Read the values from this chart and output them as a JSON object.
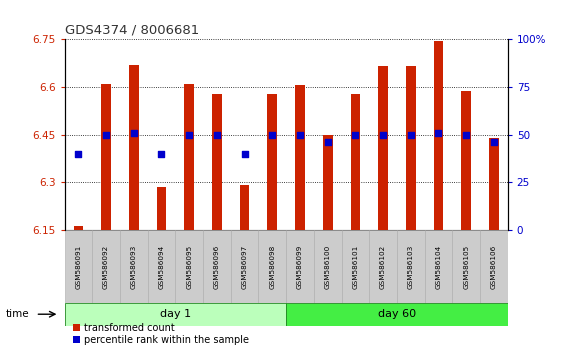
{
  "title": "GDS4374 / 8006681",
  "samples": [
    "GSM586091",
    "GSM586092",
    "GSM586093",
    "GSM586094",
    "GSM586095",
    "GSM586096",
    "GSM586097",
    "GSM586098",
    "GSM586099",
    "GSM586100",
    "GSM586101",
    "GSM586102",
    "GSM586103",
    "GSM586104",
    "GSM586105",
    "GSM586106"
  ],
  "red_values": [
    6.162,
    6.608,
    6.668,
    6.285,
    6.608,
    6.578,
    6.293,
    6.578,
    6.605,
    6.448,
    6.578,
    6.665,
    6.665,
    6.745,
    6.588,
    6.438
  ],
  "blue_values_pct": [
    40,
    50,
    51,
    40,
    50,
    50,
    40,
    50,
    50,
    46,
    50,
    50,
    50,
    51,
    50,
    46
  ],
  "ylim_left": [
    6.15,
    6.75
  ],
  "ylim_right": [
    0,
    100
  ],
  "yticks_left": [
    6.15,
    6.3,
    6.45,
    6.6,
    6.75
  ],
  "ytick_labels_left": [
    "6.15",
    "6.3",
    "6.45",
    "6.6",
    "6.75"
  ],
  "yticks_right": [
    0,
    25,
    50,
    75,
    100
  ],
  "ytick_labels_right": [
    "0",
    "25",
    "50",
    "75",
    "100%"
  ],
  "red_color": "#cc2200",
  "blue_color": "#0000cc",
  "bar_width": 0.35,
  "day1_color": "#bbffbb",
  "day60_color": "#44ee44",
  "sample_bg": "#cccccc",
  "group_border": "#228822"
}
